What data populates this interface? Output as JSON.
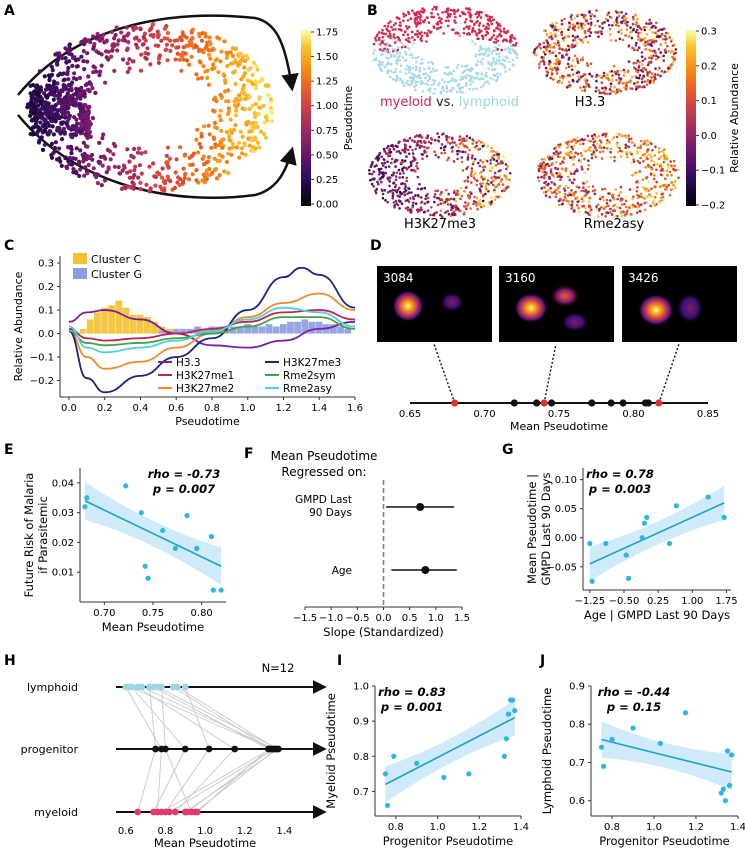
{
  "figure": {
    "panel_labels": {
      "A": "A",
      "B": "B",
      "C": "C",
      "D": "D",
      "E": "E",
      "F": "F",
      "G": "G",
      "H": "H",
      "I": "I",
      "J": "J"
    }
  },
  "panelA": {
    "colorbar_label": "Pseudotime",
    "colorbar_ticks": [
      "0.00",
      "0.25",
      "0.50",
      "0.75",
      "1.00",
      "1.25",
      "1.50",
      "1.75"
    ]
  },
  "panelB": {
    "labels": {
      "myeloid": "myeloid",
      "vs": "vs.",
      "lymphoid": "lymphoid",
      "h33": "H3.3",
      "h3k27me3": "H3K27me3",
      "rme2asy": "Rme2asy"
    },
    "colorbar_label": "Relative Abundance",
    "colorbar_ticks": [
      "0.3",
      "0.2",
      "0.1",
      "0.0",
      "−0.1",
      "−0.2"
    ]
  },
  "panelD": {
    "image_labels": [
      "3084",
      "3160",
      "3426"
    ],
    "axis_label": "Mean Pseudotime",
    "ticks": [
      "0.65",
      "0.70",
      "0.75",
      "0.80",
      "0.85"
    ]
  },
  "panelF": {
    "title_line1": "Mean Pseudotime",
    "title_line2": "Regressed on:",
    "row1_line1": "GMPD Last",
    "row1_line2": "90 Days",
    "row2": "Age",
    "xlabel": "Slope (Standardized)",
    "ticks": [
      "−1.5",
      "−1.0",
      "−0.5",
      "0.0",
      "0.5",
      "1.0",
      "1.5"
    ]
  },
  "panelH": {
    "rows": [
      "lymphoid",
      "progenitor",
      "myeloid"
    ],
    "n_label": "N=12",
    "xlabel": "Mean Pseudotime",
    "ticks": [
      "0.6",
      "0.8",
      "1.0",
      "1.2",
      "1.4"
    ]
  },
  "chart_data": [
    {
      "id": "C",
      "type": "line",
      "xlabel": "Pseudotime",
      "ylabel": "Relative Abundance",
      "xlim": [
        -0.05,
        1.6
      ],
      "ylim": [
        -0.27,
        0.33
      ],
      "x_ticks": [
        "0.0",
        "0.2",
        "0.4",
        "0.6",
        "0.8",
        "1.0",
        "1.2",
        "1.4",
        "1.6"
      ],
      "y_ticks": [
        "0.3",
        "0.2",
        "0.1",
        "0.0",
        "−0.1",
        "−0.2"
      ],
      "histograms": [
        {
          "name": "Cluster C",
          "color": "#f2c12e",
          "x": [
            0.08,
            0.12,
            0.16,
            0.2,
            0.24,
            0.28,
            0.32,
            0.36,
            0.4,
            0.44,
            0.48,
            0.52,
            0.56,
            0.6,
            0.64,
            0.68,
            0.72
          ],
          "values": [
            0.02,
            0.06,
            0.09,
            0.11,
            0.12,
            0.14,
            0.11,
            0.08,
            0.08,
            0.07,
            0.05,
            0.03,
            0.02,
            0.01,
            0.01,
            0.01,
            0.01
          ]
        },
        {
          "name": "Cluster G",
          "color": "#8d9be0",
          "x": [
            0.52,
            0.56,
            0.6,
            0.64,
            0.68,
            0.72,
            0.76,
            0.8,
            0.84,
            0.88,
            0.92,
            0.96,
            1.0,
            1.04,
            1.08,
            1.12,
            1.16,
            1.2,
            1.24,
            1.28,
            1.32,
            1.36,
            1.4,
            1.44,
            1.48,
            1.52,
            1.56
          ],
          "values": [
            0.01,
            0.01,
            0.02,
            0.02,
            0.02,
            0.03,
            0.02,
            0.03,
            0.03,
            0.02,
            0.03,
            0.03,
            0.04,
            0.03,
            0.03,
            0.04,
            0.03,
            0.04,
            0.05,
            0.05,
            0.06,
            0.05,
            0.05,
            0.04,
            0.04,
            0.03,
            0.02
          ]
        }
      ],
      "series": [
        {
          "name": "H3.3",
          "color": "#7b1fa2",
          "x": [
            0,
            0.1,
            0.2,
            0.4,
            0.6,
            0.8,
            1.0,
            1.2,
            1.4,
            1.6
          ],
          "values": [
            0.05,
            0.09,
            0.1,
            0.06,
            0.0,
            -0.05,
            -0.06,
            -0.03,
            0.02,
            0.05
          ]
        },
        {
          "name": "H3K27me1",
          "color": "#c0244b",
          "x": [
            0,
            0.1,
            0.2,
            0.4,
            0.6,
            0.8,
            1.0,
            1.2,
            1.4,
            1.6
          ],
          "values": [
            0.02,
            -0.02,
            -0.03,
            -0.02,
            0.0,
            0.02,
            0.05,
            0.09,
            0.1,
            0.06
          ]
        },
        {
          "name": "H3K27me2",
          "color": "#f08a2c",
          "x": [
            0,
            0.1,
            0.2,
            0.4,
            0.6,
            0.8,
            1.0,
            1.2,
            1.4,
            1.6
          ],
          "values": [
            0.01,
            -0.1,
            -0.15,
            -0.12,
            -0.06,
            0.0,
            0.07,
            0.13,
            0.17,
            0.1
          ]
        },
        {
          "name": "H3K27me3",
          "color": "#1a237e",
          "x": [
            0,
            0.1,
            0.2,
            0.4,
            0.6,
            0.8,
            1.0,
            1.2,
            1.3,
            1.4,
            1.6
          ],
          "values": [
            0.01,
            -0.19,
            -0.25,
            -0.18,
            -0.1,
            -0.02,
            0.1,
            0.24,
            0.28,
            0.25,
            0.11
          ]
        },
        {
          "name": "Rme2sym",
          "color": "#43a047",
          "x": [
            0,
            0.1,
            0.2,
            0.4,
            0.6,
            0.8,
            1.0,
            1.2,
            1.4,
            1.6
          ],
          "values": [
            0.01,
            -0.04,
            -0.05,
            -0.04,
            -0.02,
            0.0,
            0.03,
            0.07,
            0.07,
            0.02
          ]
        },
        {
          "name": "Rme2asy",
          "color": "#4dd0e1",
          "x": [
            0,
            0.1,
            0.2,
            0.4,
            0.6,
            0.8,
            1.0,
            1.2,
            1.4,
            1.6
          ],
          "values": [
            0.03,
            -0.06,
            -0.08,
            -0.06,
            -0.03,
            0.01,
            0.06,
            0.11,
            0.09,
            0.03
          ]
        }
      ]
    },
    {
      "id": "D",
      "type": "scatter",
      "xlabel": "Mean Pseudotime",
      "xlim": [
        0.65,
        0.85
      ],
      "points_black": [
        0.72,
        0.735,
        0.745,
        0.772,
        0.785,
        0.793,
        0.808,
        0.81
      ],
      "points_red": [
        0.68,
        0.74,
        0.817
      ]
    },
    {
      "id": "E",
      "type": "scatter",
      "xlabel": "Mean Pseudotime",
      "ylabel": "Future Risk of Malaria\nif Parasitemic",
      "xlim": [
        0.675,
        0.825
      ],
      "ylim": [
        0.0,
        0.045
      ],
      "x_ticks": [
        "0.70",
        "0.75",
        "0.80"
      ],
      "y_ticks": [
        "0.04",
        "0.03",
        "0.02",
        "0.01"
      ],
      "annotation": [
        "rho = -0.73",
        "p = 0.007"
      ],
      "x": [
        0.68,
        0.682,
        0.722,
        0.738,
        0.742,
        0.745,
        0.76,
        0.773,
        0.785,
        0.795,
        0.81,
        0.812,
        0.82
      ],
      "values": [
        0.032,
        0.035,
        0.039,
        0.03,
        0.012,
        0.008,
        0.024,
        0.018,
        0.029,
        0.018,
        0.022,
        0.004,
        0.004
      ],
      "fit": {
        "x": [
          0.68,
          0.82
        ],
        "values": [
          0.034,
          0.012
        ]
      }
    },
    {
      "id": "F",
      "type": "forest",
      "xlim": [
        -1.5,
        1.5
      ],
      "rows": [
        {
          "label": "GMPD Last 90 Days",
          "estimate": 0.7,
          "ci": [
            0.05,
            1.35
          ]
        },
        {
          "label": "Age",
          "estimate": 0.8,
          "ci": [
            0.15,
            1.4
          ]
        }
      ]
    },
    {
      "id": "G",
      "type": "scatter",
      "xlabel": "Age | GMPD Last 90 Days",
      "ylabel": "Mean Pseudotime |\nGMPD Last 90 Days",
      "xlim": [
        -1.4,
        1.85
      ],
      "ylim": [
        -0.09,
        0.12
      ],
      "x_ticks": [
        "−1.25",
        "−0.50",
        "0.25",
        "1.00",
        "1.75"
      ],
      "y_ticks": [
        "0.10",
        "0.05",
        "0.00",
        "−0.05"
      ],
      "annotation": [
        "rho = 0.78",
        "p = 0.003"
      ],
      "x": [
        -1.25,
        -1.2,
        -0.9,
        -0.45,
        -0.4,
        -0.1,
        -0.05,
        0.0,
        0.5,
        0.65,
        1.35,
        1.7
      ],
      "values": [
        -0.01,
        -0.075,
        -0.01,
        -0.03,
        -0.07,
        0.0,
        0.025,
        0.035,
        -0.01,
        0.055,
        0.07,
        0.035
      ],
      "fit": {
        "x": [
          -1.25,
          1.7
        ],
        "values": [
          -0.045,
          0.06
        ]
      }
    },
    {
      "id": "H",
      "type": "paired-dots",
      "xlim": [
        0.5,
        1.55
      ],
      "lymphoid": [
        0.6,
        0.62,
        0.63,
        0.66,
        0.68,
        0.72,
        0.74,
        0.76,
        0.78,
        0.84,
        0.86,
        0.9
      ],
      "progenitor": [
        0.75,
        0.78,
        0.8,
        0.9,
        1.02,
        1.15,
        1.32,
        1.33,
        1.34,
        1.35,
        1.36,
        1.37
      ],
      "myeloid": [
        0.66,
        0.74,
        0.76,
        0.78,
        0.8,
        0.82,
        0.85,
        0.9,
        0.91,
        0.93,
        0.95,
        0.96
      ]
    },
    {
      "id": "I",
      "type": "scatter",
      "xlabel": "Progenitor Pseudotime",
      "ylabel": "Myeloid Pseudotime",
      "xlim": [
        0.7,
        1.4
      ],
      "ylim": [
        0.63,
        1.0
      ],
      "x_ticks": [
        "0.8",
        "1.0",
        "1.2",
        "1.4"
      ],
      "y_ticks": [
        "1.0",
        "0.9",
        "0.8",
        "0.7"
      ],
      "annotation": [
        "rho = 0.83",
        "p = 0.001"
      ],
      "x": [
        0.75,
        0.76,
        0.79,
        0.9,
        1.03,
        1.15,
        1.32,
        1.33,
        1.34,
        1.35,
        1.36,
        1.37
      ],
      "values": [
        0.75,
        0.66,
        0.8,
        0.78,
        0.74,
        0.75,
        0.8,
        0.85,
        0.92,
        0.96,
        0.96,
        0.93
      ],
      "fit": {
        "x": [
          0.75,
          1.37
        ],
        "values": [
          0.72,
          0.91
        ]
      }
    },
    {
      "id": "J",
      "type": "scatter",
      "xlabel": "Progenitor Pseudotime",
      "ylabel": "Lymphoid Pseudotime",
      "xlim": [
        0.7,
        1.4
      ],
      "ylim": [
        0.56,
        0.9
      ],
      "x_ticks": [
        "0.8",
        "1.0",
        "1.2",
        "1.4"
      ],
      "y_ticks": [
        "0.9",
        "0.8",
        "0.7",
        "0.6"
      ],
      "annotation": [
        "rho = -0.44",
        "p = 0.15"
      ],
      "x": [
        0.75,
        0.76,
        0.8,
        0.9,
        1.03,
        1.15,
        1.32,
        1.33,
        1.34,
        1.35,
        1.36,
        1.37
      ],
      "values": [
        0.74,
        0.69,
        0.76,
        0.79,
        0.75,
        0.83,
        0.62,
        0.63,
        0.6,
        0.73,
        0.64,
        0.72
      ],
      "fit": {
        "x": [
          0.75,
          1.37
        ],
        "values": [
          0.76,
          0.675
        ]
      }
    }
  ]
}
